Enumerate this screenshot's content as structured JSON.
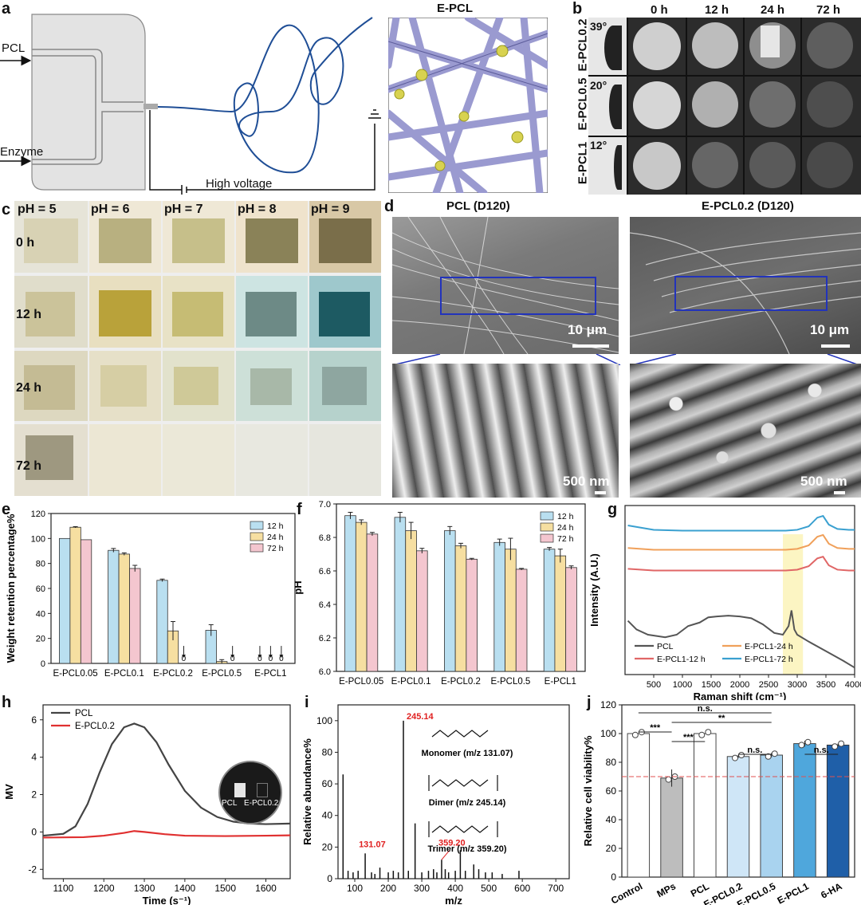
{
  "panel_letters": {
    "a": "a",
    "b": "b",
    "c": "c",
    "d": "d",
    "e": "e",
    "f": "f",
    "g": "g",
    "h": "h",
    "i": "i",
    "j": "j"
  },
  "panel_a": {
    "inlet_top": "PCL",
    "inlet_bottom": "Enzyme",
    "voltage_label": "High voltage",
    "inset_title": "E-PCL"
  },
  "panel_b": {
    "times": [
      "0 h",
      "12 h",
      "24 h",
      "72 h"
    ],
    "rows": [
      {
        "sample": "E-PCL0.2",
        "angle": "39°"
      },
      {
        "sample": "E-PCL0.5",
        "angle": "20°"
      },
      {
        "sample": "E-PCL1",
        "angle": "12°"
      }
    ]
  },
  "panel_c": {
    "ph_labels": [
      "pH = 5",
      "pH = 6",
      "pH = 7",
      "pH = 8",
      "pH = 9"
    ],
    "time_labels": [
      "0 h",
      "12 h",
      "24 h",
      "72 h"
    ]
  },
  "panel_d": {
    "title_left": "PCL (D120)",
    "title_right": "E-PCL0.2 (D120)",
    "scale_top": "10 μm",
    "scale_bottom": "500 nm"
  },
  "colors": {
    "blue_bar": "#b9dff0",
    "yellow_bar": "#f6dfa1",
    "pink_bar": "#f4c6cf",
    "line_dark": "#555555",
    "line_red": "#e06666",
    "line_orange": "#f0a05a",
    "line_blue": "#3aa0d0",
    "red_ann": "#e02020"
  },
  "chart_data": [
    {
      "id": "e",
      "type": "bar",
      "ylabel": "Weight retention percentage%",
      "categories": [
        "E-PCL0.05",
        "E-PCL0.1",
        "E-PCL0.2",
        "E-PCL0.5",
        "E-PCL1"
      ],
      "series": [
        {
          "name": "12 h",
          "values": [
            100,
            90.5,
            66.5,
            26.5,
            0
          ],
          "err": [
            0,
            1.5,
            1,
            4.5,
            0
          ]
        },
        {
          "name": "24 h",
          "values": [
            109,
            87.5,
            26,
            1.5,
            0
          ],
          "err": [
            0.5,
            1,
            7.5,
            1.5,
            0
          ]
        },
        {
          "name": "72 h",
          "values": [
            99,
            76,
            0,
            0,
            0
          ],
          "err": [
            0,
            2.5,
            0,
            0,
            0
          ]
        }
      ],
      "zero_marks": [
        "0",
        "0",
        "0",
        "0",
        "0",
        "0"
      ],
      "ylim": [
        0,
        120
      ],
      "yticks": [
        0,
        20,
        40,
        60,
        80,
        100,
        120
      ]
    },
    {
      "id": "f",
      "type": "bar",
      "ylabel": "pH",
      "categories": [
        "E-PCL0.05",
        "E-PCL0.1",
        "E-PCL0.2",
        "E-PCL0.5",
        "E-PCL1"
      ],
      "series": [
        {
          "name": "12 h",
          "values": [
            6.93,
            6.92,
            6.84,
            6.77,
            6.73
          ],
          "err": [
            0.02,
            0.03,
            0.025,
            0.02,
            0.01
          ]
        },
        {
          "name": "24 h",
          "values": [
            6.89,
            6.84,
            6.75,
            6.73,
            6.69
          ],
          "err": [
            0.015,
            0.05,
            0.015,
            0.065,
            0.04
          ]
        },
        {
          "name": "72 h",
          "values": [
            6.82,
            6.72,
            6.67,
            6.61,
            6.62
          ],
          "err": [
            0.01,
            0.015,
            0.005,
            0.005,
            0.01
          ]
        }
      ],
      "ylim": [
        6.0,
        7.0
      ],
      "yticks": [
        6.0,
        6.2,
        6.4,
        6.6,
        6.8,
        7.0
      ]
    },
    {
      "id": "g",
      "type": "line",
      "xlabel": "Raman shift (cm⁻¹)",
      "ylabel": "Intensity (A.U.)",
      "xlim": [
        0,
        4000
      ],
      "xticks": [
        500,
        1000,
        1500,
        2000,
        2500,
        3000,
        3500,
        4000
      ],
      "highlight_band": [
        2750,
        3100
      ],
      "series": [
        {
          "name": "PCL",
          "x": [
            50,
            200,
            400,
            700,
            900,
            1100,
            1300,
            1450,
            1600,
            1800,
            2000,
            2200,
            2400,
            2600,
            2750,
            2850,
            2900,
            2950,
            3000,
            3200,
            3500,
            3800,
            4000
          ],
          "y": [
            6.2,
            5.2,
            4.6,
            4.3,
            4.6,
            5.6,
            6.0,
            6.6,
            6.7,
            6.8,
            6.7,
            6.5,
            5.8,
            4.8,
            4.6,
            5.6,
            7.4,
            5.2,
            4.6,
            3.8,
            2.7,
            1.6,
            0.8
          ]
        },
        {
          "name": "E-PCL1-12 h",
          "x": [
            50,
            500,
            1000,
            1500,
            2000,
            2500,
            2800,
            3000,
            3200,
            3350,
            3450,
            3550,
            3700,
            3900,
            4000
          ],
          "y": [
            12.2,
            12.0,
            12.0,
            12.0,
            12.0,
            12.0,
            12.0,
            12.1,
            12.5,
            13.4,
            13.6,
            12.6,
            12.1,
            12.0,
            12.0
          ]
        },
        {
          "name": "E-PCL1-24 h",
          "x": [
            50,
            500,
            1000,
            1500,
            2000,
            2500,
            2800,
            3000,
            3200,
            3350,
            3450,
            3550,
            3700,
            3900,
            4000
          ],
          "y": [
            14.6,
            14.4,
            14.4,
            14.4,
            14.4,
            14.4,
            14.4,
            14.5,
            14.9,
            15.9,
            16.1,
            15.1,
            14.6,
            14.5,
            14.5
          ]
        },
        {
          "name": "E-PCL1-72 h",
          "x": [
            50,
            500,
            1000,
            1500,
            2000,
            2500,
            2800,
            3000,
            3200,
            3350,
            3450,
            3550,
            3700,
            3900,
            4000
          ],
          "y": [
            17.2,
            16.7,
            16.6,
            16.6,
            16.6,
            16.6,
            16.6,
            16.7,
            17.1,
            18.1,
            18.3,
            17.3,
            16.8,
            16.7,
            16.7
          ]
        }
      ]
    },
    {
      "id": "h",
      "type": "line",
      "xlabel": "Time (s⁻¹)",
      "ylabel": "MV",
      "xlim": [
        1050,
        1660
      ],
      "ylim": [
        -2.5,
        6.8
      ],
      "xticks": [
        1100,
        1200,
        1300,
        1400,
        1500,
        1600
      ],
      "yticks": [
        -2,
        0,
        2,
        4,
        6
      ],
      "inset_labels": [
        "PCL",
        "E-PCL0.2"
      ],
      "series": [
        {
          "name": "PCL",
          "x": [
            1050,
            1100,
            1130,
            1160,
            1190,
            1220,
            1250,
            1275,
            1300,
            1330,
            1360,
            1400,
            1440,
            1480,
            1520,
            1560,
            1600,
            1660
          ],
          "y": [
            -0.2,
            -0.1,
            0.3,
            1.5,
            3.2,
            4.7,
            5.6,
            5.8,
            5.6,
            4.8,
            3.6,
            2.2,
            1.3,
            0.8,
            0.55,
            0.45,
            0.42,
            0.45
          ]
        },
        {
          "name": "E-PCL0.2",
          "x": [
            1050,
            1150,
            1200,
            1250,
            1275,
            1300,
            1350,
            1400,
            1500,
            1600,
            1660
          ],
          "y": [
            -0.3,
            -0.28,
            -0.2,
            -0.05,
            0.05,
            0.0,
            -0.12,
            -0.2,
            -0.22,
            -0.2,
            -0.18
          ]
        }
      ]
    },
    {
      "id": "i",
      "type": "bar",
      "xlabel": "m/z",
      "ylabel": "Relative abundance%",
      "xlim": [
        50,
        740
      ],
      "ylim": [
        0,
        110
      ],
      "xticks": [
        100,
        200,
        300,
        400,
        500,
        600,
        700
      ],
      "yticks": [
        0,
        20,
        40,
        60,
        80,
        100
      ],
      "peaks_x": [
        65,
        80,
        95,
        110,
        131.07,
        150,
        160,
        175,
        200,
        215,
        230,
        245.14,
        260,
        280,
        300,
        320,
        335,
        345,
        359.2,
        370,
        380,
        400,
        415,
        430,
        455,
        470,
        490,
        510,
        540,
        590
      ],
      "peaks_y": [
        66,
        5,
        4,
        5,
        16,
        4,
        3,
        7,
        4,
        5,
        4,
        100,
        5,
        35,
        4,
        5,
        6,
        4,
        12,
        6,
        4,
        5,
        18,
        5,
        9,
        6,
        4,
        4,
        3,
        5
      ],
      "labeled_peaks": [
        "245.14",
        "131.07",
        "359.20"
      ],
      "structures": [
        "Monomer (m/z 131.07)",
        "Dimer (m/z 245.14)",
        "Trimer (m/z 359.20)"
      ]
    },
    {
      "id": "j",
      "type": "bar",
      "ylabel": "Relative cell viability%",
      "categories": [
        "Control",
        "MPs",
        "PCL",
        "E-PCL0.2",
        "E-PCL0.5",
        "E-PCL1",
        "6-HA"
      ],
      "values": [
        100,
        69,
        100,
        84,
        85,
        93,
        92
      ],
      "err": [
        0,
        6,
        0,
        1,
        1.5,
        2,
        1
      ],
      "colors": [
        "#ffffff",
        "#bdbdbd",
        "#ffffff",
        "#cfe6f7",
        "#a9d3ef",
        "#4fa7dc",
        "#1f5fa8"
      ],
      "ylim": [
        0,
        120
      ],
      "yticks": [
        0,
        20,
        40,
        60,
        80,
        100,
        120
      ],
      "threshold": 70,
      "significance": [
        "n.s.",
        "**",
        "***",
        "***",
        "n.s.",
        "n.s."
      ]
    }
  ]
}
